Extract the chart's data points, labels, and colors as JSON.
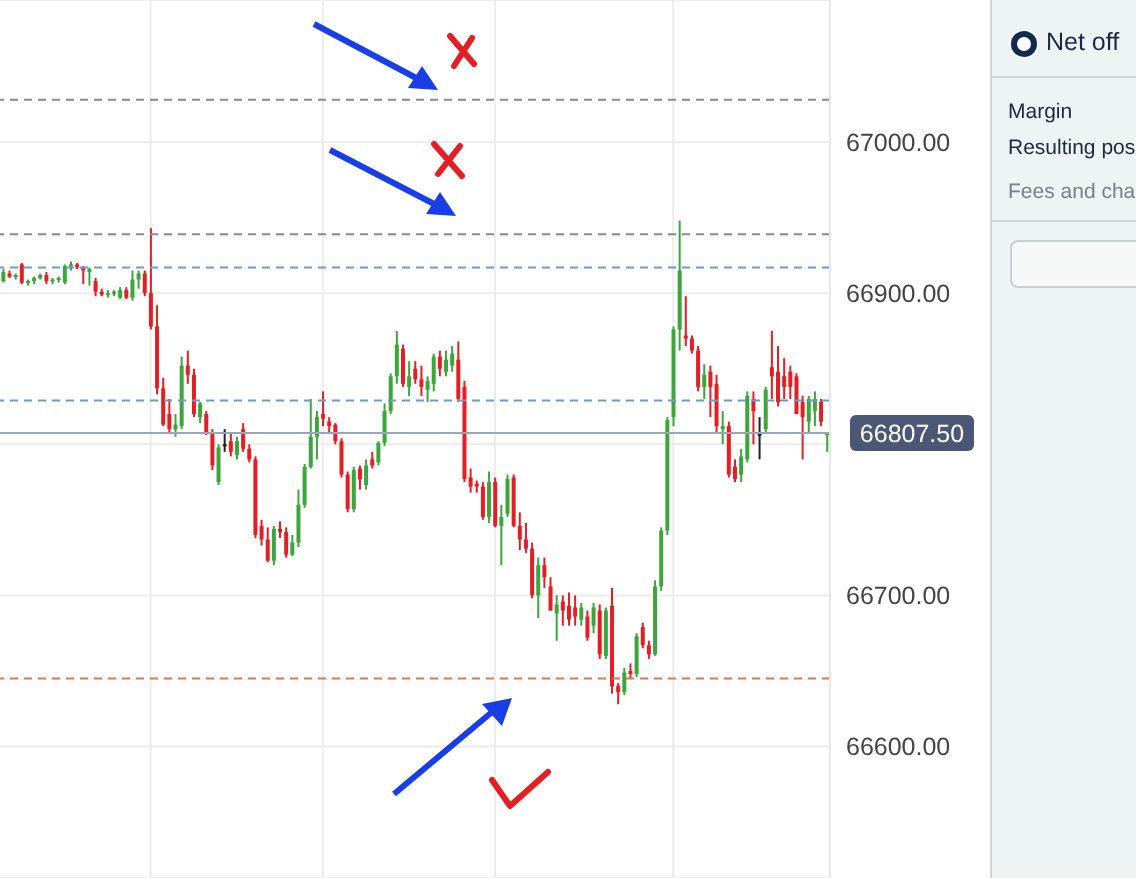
{
  "chart_data": {
    "type": "candlestick",
    "categories": [
      null,
      null,
      null,
      null,
      null,
      null,
      null,
      null,
      null,
      null,
      null,
      null,
      null,
      null,
      null,
      null,
      null,
      null,
      null,
      null,
      null,
      null,
      null,
      null,
      null,
      null,
      null,
      null,
      null,
      null,
      null,
      null,
      null,
      null,
      null,
      null,
      null,
      null,
      null,
      null,
      null,
      null,
      null,
      null,
      null,
      null,
      null,
      null,
      null,
      null,
      null,
      null,
      null,
      null,
      null,
      null,
      null,
      null,
      null,
      null,
      null,
      null,
      null,
      null,
      null,
      null,
      null,
      null,
      null,
      null,
      null,
      null,
      null,
      null,
      null,
      null,
      null,
      null,
      null,
      null,
      null,
      null,
      null,
      null,
      null,
      null,
      null,
      null,
      null,
      null,
      null,
      null,
      null,
      null,
      null,
      null,
      null,
      null,
      null,
      null,
      null,
      null,
      null,
      null,
      null,
      null,
      null,
      null,
      null,
      null,
      null,
      null,
      null,
      null,
      null,
      null,
      null,
      null,
      null,
      null,
      null,
      null,
      null,
      null,
      null,
      null,
      null,
      null,
      null,
      null,
      null,
      null,
      null,
      null,
      null
    ],
    "ohlc": [
      [
        66908,
        66916,
        66907,
        66914
      ],
      [
        66913,
        66915,
        66910,
        66911
      ],
      [
        66911,
        66913,
        66909,
        66912
      ],
      [
        66919,
        66920,
        66906,
        66907
      ],
      [
        66907,
        66909,
        66905,
        66908
      ],
      [
        66908,
        66911,
        66906,
        66910
      ],
      [
        66910,
        66913,
        66909,
        66912
      ],
      [
        66912,
        66914,
        66906,
        66908
      ],
      [
        66908,
        66910,
        66906,
        66909
      ],
      [
        66909,
        66911,
        66907,
        66910
      ],
      [
        66907,
        66919,
        66906,
        66918
      ],
      [
        66918,
        66921,
        66915,
        66919
      ],
      [
        66919,
        66920,
        66916,
        66917
      ],
      [
        66917,
        66918,
        66906,
        66915
      ],
      [
        66914,
        66917,
        66905,
        66916
      ],
      [
        66908,
        66910,
        66898,
        66901
      ],
      [
        66901,
        66903,
        66898,
        66899
      ],
      [
        66899,
        66902,
        66897,
        66900
      ],
      [
        66900,
        66902,
        66898,
        66901
      ],
      [
        66897,
        66904,
        66896,
        66902
      ],
      [
        66902,
        66904,
        66896,
        66897
      ],
      [
        66897,
        66915,
        66895,
        66909
      ],
      [
        66909,
        66915,
        66903,
        66913
      ],
      [
        66913,
        66915,
        66898,
        66900
      ],
      [
        66900,
        66943,
        66876,
        66878
      ],
      [
        66878,
        66892,
        66833,
        66837
      ],
      [
        66837,
        66844,
        66812,
        66813
      ],
      [
        66820,
        66830,
        66808,
        66810
      ],
      [
        66810,
        66820,
        66805,
        66813
      ],
      [
        66812,
        66858,
        66810,
        66852
      ],
      [
        66852,
        66862,
        66840,
        66846
      ],
      [
        66846,
        66850,
        66818,
        66820
      ],
      [
        66818,
        66828,
        66814,
        66827
      ],
      [
        66820,
        66822,
        66806,
        66808
      ],
      [
        66808,
        66810,
        66783,
        66786
      ],
      [
        66775,
        66800,
        66773,
        66798
      ],
      [
        66800,
        66810,
        66795,
        66800
      ],
      [
        66802,
        66808,
        66792,
        66795
      ],
      [
        66793,
        66805,
        66790,
        66802
      ],
      [
        66810,
        66814,
        66795,
        66797
      ],
      [
        66797,
        66800,
        66788,
        66790
      ],
      [
        66790,
        66792,
        66738,
        66740
      ],
      [
        66746,
        66750,
        66733,
        66737
      ],
      [
        66737,
        66745,
        66722,
        66723
      ],
      [
        66723,
        66746,
        66720,
        66744
      ],
      [
        66744,
        66749,
        66738,
        66742
      ],
      [
        66742,
        66745,
        66725,
        66727
      ],
      [
        66727,
        66740,
        66726,
        66735
      ],
      [
        66735,
        66770,
        66732,
        66760
      ],
      [
        66760,
        66787,
        66758,
        66785
      ],
      [
        66785,
        66830,
        66784,
        66805
      ],
      [
        66805,
        66822,
        66790,
        66818
      ],
      [
        66820,
        66835,
        66812,
        66817
      ],
      [
        66815,
        66818,
        66808,
        66812
      ],
      [
        66813,
        66814,
        66800,
        66802
      ],
      [
        66802,
        66804,
        66778,
        66780
      ],
      [
        66780,
        66782,
        66755,
        66757
      ],
      [
        66757,
        66785,
        66755,
        66783
      ],
      [
        66784,
        66786,
        66770,
        66777
      ],
      [
        66773,
        66790,
        66770,
        66786
      ],
      [
        66790,
        66795,
        66784,
        66786
      ],
      [
        66788,
        66802,
        66786,
        66801
      ],
      [
        66801,
        66827,
        66799,
        66822
      ],
      [
        66822,
        66847,
        66820,
        66845
      ],
      [
        66845,
        66875,
        66840,
        66866
      ],
      [
        66863,
        66866,
        66838,
        66840
      ],
      [
        66838,
        66855,
        66832,
        66845
      ],
      [
        66850,
        66855,
        66840,
        66843
      ],
      [
        66843,
        66852,
        66832,
        66838
      ],
      [
        66836,
        66845,
        66828,
        66842
      ],
      [
        66840,
        66860,
        66835,
        66858
      ],
      [
        66858,
        66862,
        66845,
        66850
      ],
      [
        66848,
        66862,
        66845,
        66856
      ],
      [
        66852,
        66865,
        66848,
        66860
      ],
      [
        66856,
        66868,
        66828,
        66830
      ],
      [
        66838,
        66842,
        66775,
        66777
      ],
      [
        66778,
        66784,
        66768,
        66772
      ],
      [
        66774,
        66776,
        66768,
        66772
      ],
      [
        66772,
        66775,
        66750,
        66752
      ],
      [
        66752,
        66782,
        66748,
        66775
      ],
      [
        66775,
        66778,
        66745,
        66746
      ],
      [
        66746,
        66760,
        66720,
        66752
      ],
      [
        66754,
        66780,
        66752,
        66777
      ],
      [
        66778,
        66780,
        66745,
        66746
      ],
      [
        66746,
        66755,
        66730,
        66737
      ],
      [
        66737,
        66748,
        66728,
        66731
      ],
      [
        66731,
        66735,
        66698,
        66700
      ],
      [
        66700,
        66725,
        66685,
        66720
      ],
      [
        66720,
        66725,
        66705,
        66712
      ],
      [
        66706,
        66712,
        66690,
        66690
      ],
      [
        66688,
        66700,
        66670,
        66694
      ],
      [
        66696,
        66700,
        66680,
        66690
      ],
      [
        66693,
        66702,
        66680,
        66684
      ],
      [
        66692,
        66700,
        66680,
        66686
      ],
      [
        66684,
        66695,
        66680,
        66692
      ],
      [
        66686,
        66690,
        66670,
        66672
      ],
      [
        66680,
        66695,
        66675,
        66692
      ],
      [
        66690,
        66694,
        66658,
        66661
      ],
      [
        66660,
        66692,
        66658,
        66690
      ],
      [
        66693,
        66705,
        66635,
        66640
      ],
      [
        66640,
        66642,
        66628,
        66636
      ],
      [
        66636,
        66652,
        66634,
        66649
      ],
      [
        66650,
        66655,
        66645,
        66648
      ],
      [
        66648,
        66675,
        66646,
        66673
      ],
      [
        66679,
        66682,
        66665,
        66667
      ],
      [
        66667,
        66670,
        66658,
        66661
      ],
      [
        66661,
        66710,
        66660,
        66706
      ],
      [
        66706,
        66745,
        66703,
        66743
      ],
      [
        66743,
        66818,
        66740,
        66816
      ],
      [
        66818,
        66878,
        66812,
        66876
      ],
      [
        66876,
        66948,
        66862,
        66915
      ],
      [
        66872,
        66898,
        66865,
        66870
      ],
      [
        66870,
        66872,
        66860,
        66862
      ],
      [
        66862,
        66865,
        66835,
        66838
      ],
      [
        66838,
        66853,
        66830,
        66846
      ],
      [
        66848,
        66852,
        66818,
        66838
      ],
      [
        66840,
        66846,
        66808,
        66812
      ],
      [
        66810,
        66822,
        66800,
        66812
      ],
      [
        66812,
        66815,
        66778,
        66780
      ],
      [
        66785,
        66790,
        66775,
        66777
      ],
      [
        66780,
        66797,
        66775,
        66792
      ],
      [
        66790,
        66835,
        66788,
        66832
      ],
      [
        66830,
        66835,
        66800,
        66822
      ],
      [
        66807,
        66818,
        66790,
        66807
      ],
      [
        66810,
        66838,
        66808,
        66836
      ],
      [
        66851,
        66875,
        66830,
        66845
      ],
      [
        66848,
        66865,
        66825,
        66828
      ],
      [
        66845,
        66857,
        66830,
        66838
      ],
      [
        66848,
        66852,
        66830,
        66838
      ],
      [
        66845,
        66847,
        66820,
        66820
      ],
      [
        66828,
        66832,
        66790,
        66818
      ],
      [
        66815,
        66832,
        66808,
        66830
      ],
      [
        66822,
        66835,
        66812,
        66830
      ],
      [
        66828,
        66830,
        66812,
        66815
      ],
      [
        66806,
        66808,
        66795,
        66808
      ]
    ],
    "colors": [
      "#3ca53c",
      "#e31e24",
      "#3ca53c",
      "#e31e24",
      "#3ca53c",
      "#3ca53c",
      "#3ca53c",
      "#e31e24",
      "#3ca53c",
      "#3ca53c",
      "#3ca53c",
      "#3ca53c",
      "#e31e24",
      "#e31e24",
      "#3ca53c",
      "#e31e24",
      "#e31e24",
      "#3ca53c",
      "#3ca53c",
      "#3ca53c",
      "#e31e24",
      "#3ca53c",
      "#3ca53c",
      "#e31e24",
      "#e31e24",
      "#e31e24",
      "#e31e24",
      "#e31e24",
      "#3ca53c",
      "#3ca53c",
      "#e31e24",
      "#e31e24",
      "#3ca53c",
      "#e31e24",
      "#e31e24",
      "#3ca53c",
      "#222222",
      "#e31e24",
      "#3ca53c",
      "#e31e24",
      "#e31e24",
      "#e31e24",
      "#e31e24",
      "#e31e24",
      "#3ca53c",
      "#e31e24",
      "#e31e24",
      "#3ca53c",
      "#3ca53c",
      "#3ca53c",
      "#3ca53c",
      "#3ca53c",
      "#e31e24",
      "#e31e24",
      "#e31e24",
      "#e31e24",
      "#e31e24",
      "#3ca53c",
      "#e31e24",
      "#3ca53c",
      "#e31e24",
      "#3ca53c",
      "#3ca53c",
      "#3ca53c",
      "#3ca53c",
      "#e31e24",
      "#3ca53c",
      "#e31e24",
      "#e31e24",
      "#3ca53c",
      "#3ca53c",
      "#e31e24",
      "#3ca53c",
      "#3ca53c",
      "#e31e24",
      "#e31e24",
      "#e31e24",
      "#e31e24",
      "#e31e24",
      "#3ca53c",
      "#e31e24",
      "#3ca53c",
      "#3ca53c",
      "#e31e24",
      "#e31e24",
      "#e31e24",
      "#e31e24",
      "#3ca53c",
      "#e31e24",
      "#e31e24",
      "#3ca53c",
      "#e31e24",
      "#e31e24",
      "#e31e24",
      "#3ca53c",
      "#e31e24",
      "#3ca53c",
      "#e31e24",
      "#3ca53c",
      "#e31e24",
      "#e31e24",
      "#3ca53c",
      "#e31e24",
      "#3ca53c",
      "#e31e24",
      "#e31e24",
      "#3ca53c",
      "#3ca53c",
      "#3ca53c",
      "#3ca53c",
      "#3ca53c",
      "#e31e24",
      "#e31e24",
      "#e31e24",
      "#3ca53c",
      "#e31e24",
      "#e31e24",
      "#3ca53c",
      "#e31e24",
      "#e31e24",
      "#3ca53c",
      "#3ca53c",
      "#e31e24",
      "#222222",
      "#3ca53c",
      "#e31e24",
      "#e31e24",
      "#e31e24",
      "#e31e24",
      "#e31e24",
      "#e31e24",
      "#3ca53c",
      "#3ca53c",
      "#e31e24",
      "#3ca53c"
    ],
    "ylim": [
      66513,
      67094
    ],
    "yticks": [
      {
        "value": 66600,
        "label": "66600.00"
      },
      {
        "value": 66700,
        "label": "66700.00"
      },
      {
        "value": 66800,
        "label": null
      },
      {
        "value": 66900,
        "label": "66900.00"
      },
      {
        "value": 67000,
        "label": "67000.00"
      }
    ],
    "grid": true,
    "ref_lines": [
      {
        "axis": "y",
        "value": 67028,
        "color": "#8a86a0",
        "line_style": "dashed"
      },
      {
        "axis": "y",
        "value": 66939,
        "color": "#8a8a8a",
        "line_style": "dashed"
      },
      {
        "axis": "y",
        "value": 66917,
        "color": "#6a9bd0",
        "line_style": "dashed"
      },
      {
        "axis": "y",
        "value": 66829,
        "color": "#6a9bd0",
        "line_style": "dashed"
      },
      {
        "axis": "y",
        "value": 66807.5,
        "label": "66807.50",
        "color": "#9aa6b8",
        "line_style": "solid"
      },
      {
        "axis": "y",
        "value": 66645,
        "color": "#e8704a",
        "line_style": "dashed"
      }
    ],
    "annotations": [
      "Net off",
      "Margin",
      "Resulting pos",
      "Fees and cha"
    ]
  }
}
